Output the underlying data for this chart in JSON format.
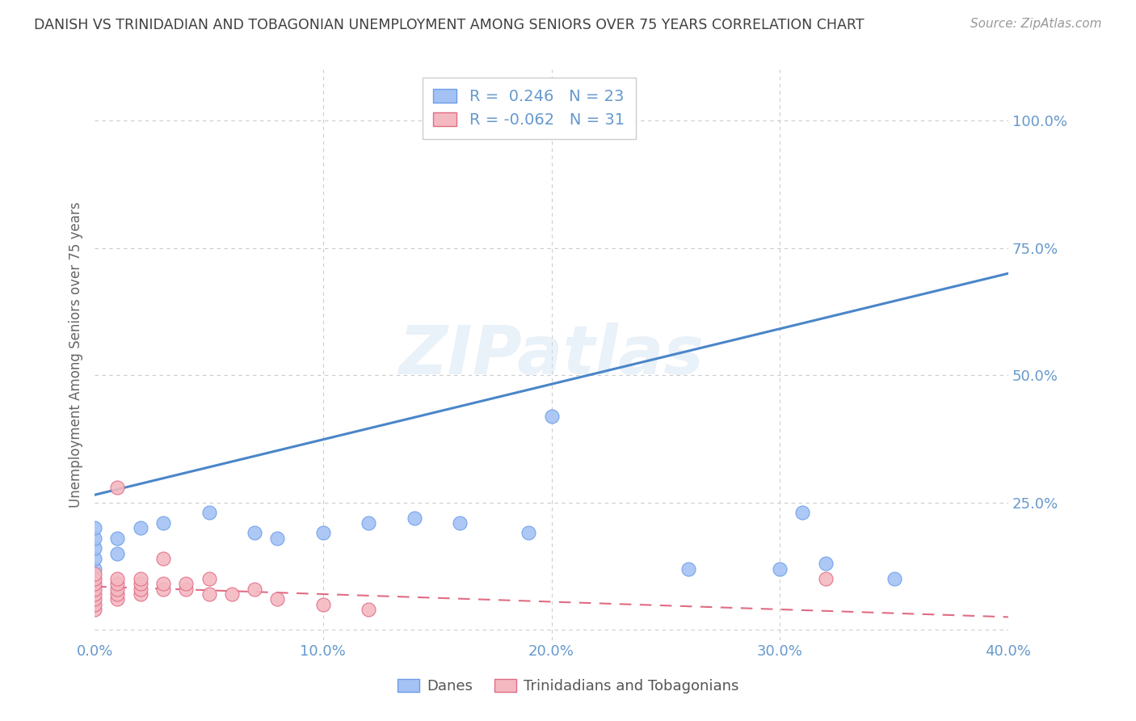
{
  "title": "DANISH VS TRINIDADIAN AND TOBAGONIAN UNEMPLOYMENT AMONG SENIORS OVER 75 YEARS CORRELATION CHART",
  "source": "Source: ZipAtlas.com",
  "ylabel": "Unemployment Among Seniors over 75 years",
  "xlim": [
    0.0,
    0.4
  ],
  "ylim": [
    -0.02,
    1.1
  ],
  "xticks": [
    0.0,
    0.1,
    0.2,
    0.3,
    0.4
  ],
  "xtick_labels": [
    "0.0%",
    "10.0%",
    "20.0%",
    "30.0%",
    "40.0%"
  ],
  "yticks": [
    0.0,
    0.25,
    0.5,
    0.75,
    1.0
  ],
  "ytick_labels": [
    "",
    "25.0%",
    "50.0%",
    "75.0%",
    "100.0%"
  ],
  "R_danes": 0.246,
  "N_danes": 23,
  "R_tt": -0.062,
  "N_tt": 31,
  "danes_color": "#a4c2f4",
  "danes_color_edge": "#6d9eeb",
  "tt_color": "#f4b8c1",
  "tt_color_edge": "#e06c84",
  "danes_line_color": "#4a86c8",
  "tt_line_color": "#e06c84",
  "watermark": "ZIPatlas",
  "danes_line_x0": 0.0,
  "danes_line_y0": 0.265,
  "danes_line_x1": 0.4,
  "danes_line_y1": 0.7,
  "tt_line_x0": 0.0,
  "tt_line_y0": 0.085,
  "tt_line_x1": 0.4,
  "tt_line_y1": 0.025,
  "danes_x": [
    0.0,
    0.0,
    0.0,
    0.0,
    0.0,
    0.01,
    0.01,
    0.02,
    0.03,
    0.05,
    0.07,
    0.08,
    0.1,
    0.12,
    0.14,
    0.16,
    0.19,
    0.2,
    0.26,
    0.3,
    0.31,
    0.35,
    0.32
  ],
  "danes_y": [
    0.12,
    0.14,
    0.16,
    0.18,
    0.2,
    0.15,
    0.18,
    0.2,
    0.21,
    0.23,
    0.19,
    0.18,
    0.19,
    0.21,
    0.22,
    0.21,
    0.19,
    0.42,
    0.12,
    0.12,
    0.23,
    0.1,
    0.13
  ],
  "tt_x": [
    0.0,
    0.0,
    0.0,
    0.0,
    0.0,
    0.0,
    0.0,
    0.0,
    0.01,
    0.01,
    0.01,
    0.01,
    0.01,
    0.01,
    0.02,
    0.02,
    0.02,
    0.02,
    0.03,
    0.03,
    0.03,
    0.04,
    0.04,
    0.05,
    0.05,
    0.06,
    0.07,
    0.08,
    0.1,
    0.12,
    0.32
  ],
  "tt_y": [
    0.04,
    0.05,
    0.06,
    0.07,
    0.08,
    0.09,
    0.1,
    0.11,
    0.06,
    0.07,
    0.08,
    0.09,
    0.1,
    0.28,
    0.07,
    0.08,
    0.09,
    0.1,
    0.08,
    0.09,
    0.14,
    0.08,
    0.09,
    0.07,
    0.1,
    0.07,
    0.08,
    0.06,
    0.05,
    0.04,
    0.1
  ],
  "background_color": "#ffffff",
  "grid_color": "#cccccc",
  "title_color": "#404040",
  "axis_color": "#6699cc",
  "ylabel_color": "#666666"
}
